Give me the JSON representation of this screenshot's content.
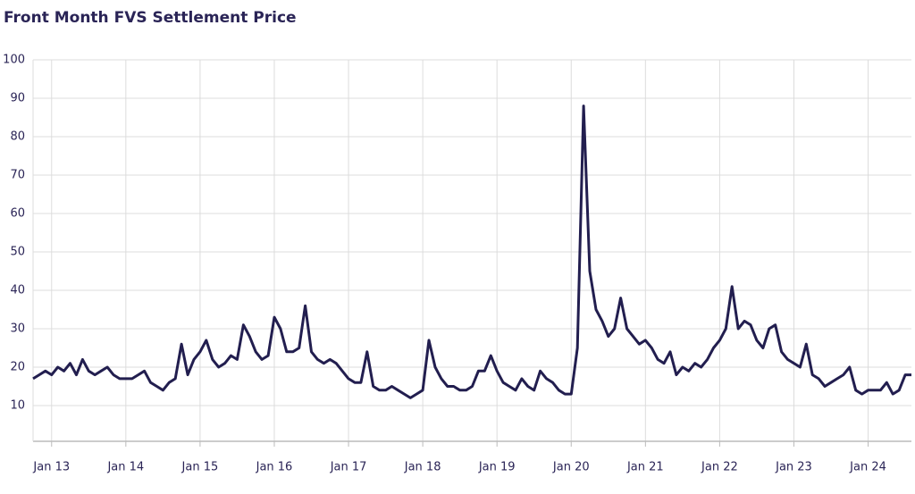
{
  "chart_data": {
    "type": "line",
    "title": "Front Month FVS Settlement Price",
    "x": [
      "2012-10",
      "2012-11",
      "2012-12",
      "2013-01",
      "2013-02",
      "2013-03",
      "2013-04",
      "2013-05",
      "2013-06",
      "2013-07",
      "2013-08",
      "2013-09",
      "2013-10",
      "2013-11",
      "2013-12",
      "2014-01",
      "2014-02",
      "2014-03",
      "2014-04",
      "2014-05",
      "2014-06",
      "2014-07",
      "2014-08",
      "2014-09",
      "2014-10",
      "2014-11",
      "2014-12",
      "2015-01",
      "2015-02",
      "2015-03",
      "2015-04",
      "2015-05",
      "2015-06",
      "2015-07",
      "2015-08",
      "2015-09",
      "2015-10",
      "2015-11",
      "2015-12",
      "2016-01",
      "2016-02",
      "2016-03",
      "2016-04",
      "2016-05",
      "2016-06",
      "2016-07",
      "2016-08",
      "2016-09",
      "2016-10",
      "2016-11",
      "2016-12",
      "2017-01",
      "2017-02",
      "2017-03",
      "2017-04",
      "2017-05",
      "2017-06",
      "2017-07",
      "2017-08",
      "2017-09",
      "2017-10",
      "2017-11",
      "2017-12",
      "2018-01",
      "2018-02",
      "2018-03",
      "2018-04",
      "2018-05",
      "2018-06",
      "2018-07",
      "2018-08",
      "2018-09",
      "2018-10",
      "2018-11",
      "2018-12",
      "2019-01",
      "2019-02",
      "2019-03",
      "2019-04",
      "2019-05",
      "2019-06",
      "2019-07",
      "2019-08",
      "2019-09",
      "2019-10",
      "2019-11",
      "2019-12",
      "2020-01",
      "2020-02",
      "2020-03",
      "2020-04",
      "2020-05",
      "2020-06",
      "2020-07",
      "2020-08",
      "2020-09",
      "2020-10",
      "2020-11",
      "2020-12",
      "2021-01",
      "2021-02",
      "2021-03",
      "2021-04",
      "2021-05",
      "2021-06",
      "2021-07",
      "2021-08",
      "2021-09",
      "2021-10",
      "2021-11",
      "2021-12",
      "2022-01",
      "2022-02",
      "2022-03",
      "2022-04",
      "2022-05",
      "2022-06",
      "2022-07",
      "2022-08",
      "2022-09",
      "2022-10",
      "2022-11",
      "2022-12",
      "2023-01",
      "2023-02",
      "2023-03",
      "2023-04",
      "2023-05",
      "2023-06",
      "2023-07",
      "2023-08",
      "2023-09",
      "2023-10",
      "2023-11",
      "2023-12",
      "2024-01",
      "2024-02",
      "2024-03",
      "2024-04",
      "2024-05",
      "2024-06",
      "2024-07",
      "2024-08"
    ],
    "series": [
      {
        "name": "Front Month FVS",
        "color": "#221e4f",
        "values": [
          17,
          18,
          19,
          18,
          20,
          19,
          21,
          18,
          22,
          19,
          18,
          19,
          20,
          18,
          17,
          17,
          17,
          18,
          19,
          16,
          15,
          14,
          16,
          17,
          26,
          18,
          22,
          24,
          27,
          22,
          20,
          21,
          23,
          22,
          31,
          28,
          24,
          22,
          23,
          33,
          30,
          24,
          24,
          25,
          36,
          24,
          22,
          21,
          22,
          21,
          19,
          17,
          16,
          16,
          24,
          15,
          14,
          14,
          15,
          14,
          13,
          12,
          13,
          14,
          27,
          20,
          17,
          15,
          15,
          14,
          14,
          15,
          19,
          19,
          23,
          19,
          16,
          15,
          14,
          17,
          15,
          14,
          19,
          17,
          16,
          14,
          13,
          13,
          25,
          88,
          45,
          35,
          32,
          28,
          30,
          38,
          30,
          28,
          26,
          27,
          25,
          22,
          21,
          24,
          18,
          20,
          19,
          21,
          20,
          22,
          25,
          27,
          30,
          41,
          30,
          32,
          31,
          27,
          25,
          30,
          31,
          24,
          22,
          21,
          20,
          26,
          18,
          17,
          15,
          16,
          17,
          18,
          20,
          14,
          13,
          14,
          14,
          14,
          16,
          13,
          14,
          18,
          18
        ]
      }
    ],
    "xlim": [
      "2012-10",
      "2024-08"
    ],
    "xticks": [
      {
        "value": "2013-01",
        "label": "Jan 13"
      },
      {
        "value": "2014-01",
        "label": "Jan 14"
      },
      {
        "value": "2015-01",
        "label": "Jan 15"
      },
      {
        "value": "2016-01",
        "label": "Jan 16"
      },
      {
        "value": "2017-01",
        "label": "Jan 17"
      },
      {
        "value": "2018-01",
        "label": "Jan 18"
      },
      {
        "value": "2019-01",
        "label": "Jan 19"
      },
      {
        "value": "2020-01",
        "label": "Jan 20"
      },
      {
        "value": "2021-01",
        "label": "Jan 21"
      },
      {
        "value": "2022-01",
        "label": "Jan 22"
      },
      {
        "value": "2023-01",
        "label": "Jan 23"
      },
      {
        "value": "2024-01",
        "label": "Jan 24"
      }
    ],
    "ylim": [
      0,
      100
    ],
    "yticks": [
      10,
      20,
      30,
      40,
      50,
      60,
      70,
      80,
      90,
      100
    ],
    "grid": true
  }
}
